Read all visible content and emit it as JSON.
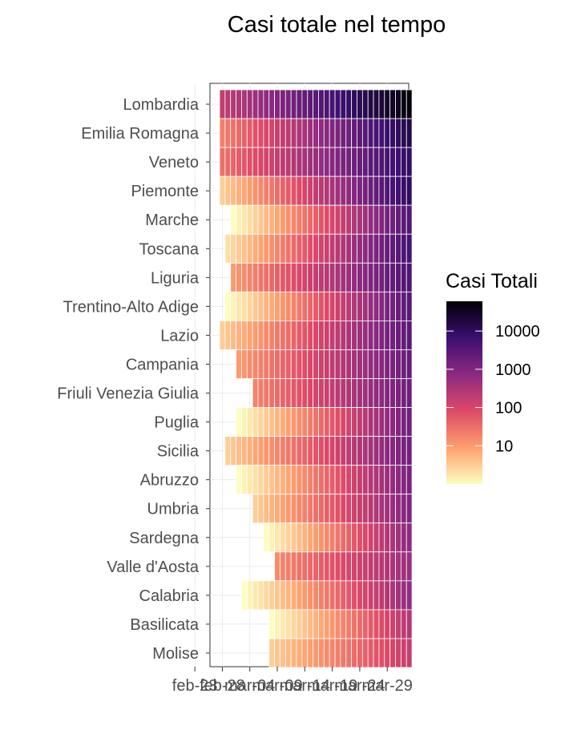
{
  "chart_data": {
    "type": "heatmap",
    "title": "Casi totale nel tempo",
    "xlabel": "",
    "ylabel": "",
    "x_tick_labels": [
      "feb-23",
      "feb-28",
      "mar-04",
      "mar-09",
      "mar-14",
      "mar-19",
      "mar-24",
      "mar-29"
    ],
    "dates": [
      "02-24",
      "02-25",
      "02-26",
      "02-27",
      "02-28",
      "02-29",
      "03-01",
      "03-02",
      "03-03",
      "03-04",
      "03-05",
      "03-06",
      "03-07",
      "03-08",
      "03-09",
      "03-10",
      "03-11",
      "03-12",
      "03-13",
      "03-14",
      "03-15",
      "03-16",
      "03-17",
      "03-18",
      "03-19",
      "03-20",
      "03-21",
      "03-22",
      "03-23",
      "03-24",
      "03-25",
      "03-26",
      "03-27",
      "03-28",
      "03-29"
    ],
    "color_scale": "log10",
    "palette": [
      "#fcfdbf",
      "#fe9f6d",
      "#de4968",
      "#8c2981",
      "#3b0f70",
      "#000004"
    ],
    "legend": {
      "title": "Casi Totali",
      "position": "right",
      "labels": [
        "10",
        "100",
        "1000",
        "10000"
      ],
      "values": [
        10,
        100,
        1000,
        10000
      ],
      "range": [
        1,
        60000
      ]
    },
    "grid": true,
    "regions": [
      {
        "name": "Lombardia",
        "start": 0,
        "v0": 170,
        "v1": 52000
      },
      {
        "name": "Emilia Romagna",
        "start": 0,
        "v0": 20,
        "v1": 15000
      },
      {
        "name": "Veneto",
        "start": 0,
        "v0": 30,
        "v1": 9000
      },
      {
        "name": "Piemonte",
        "start": 0,
        "v0": 3,
        "v1": 9500
      },
      {
        "name": "Marche",
        "start": 2,
        "v0": 1,
        "v1": 3500
      },
      {
        "name": "Toscana",
        "start": 1,
        "v0": 2,
        "v1": 5000
      },
      {
        "name": "Liguria",
        "start": 2,
        "v0": 10,
        "v1": 4000
      },
      {
        "name": "Trentino-Alto Adige",
        "start": 1,
        "v0": 1,
        "v1": 3000
      },
      {
        "name": "Lazio",
        "start": 0,
        "v0": 3,
        "v1": 2800
      },
      {
        "name": "Campania",
        "start": 3,
        "v0": 10,
        "v1": 2000
      },
      {
        "name": "Friuli Venezia Giulia",
        "start": 6,
        "v0": 18,
        "v1": 1700
      },
      {
        "name": "Puglia",
        "start": 3,
        "v0": 1,
        "v1": 1600
      },
      {
        "name": "Sicilia",
        "start": 1,
        "v0": 3,
        "v1": 1500
      },
      {
        "name": "Abruzzo",
        "start": 3,
        "v0": 1,
        "v1": 1200
      },
      {
        "name": "Umbria",
        "start": 6,
        "v0": 3,
        "v1": 1000
      },
      {
        "name": "Sardegna",
        "start": 8,
        "v0": 1,
        "v1": 700
      },
      {
        "name": "Valle d'Aosta",
        "start": 10,
        "v0": 15,
        "v1": 500
      },
      {
        "name": "Calabria",
        "start": 4,
        "v0": 1,
        "v1": 600
      },
      {
        "name": "Basilicata",
        "start": 9,
        "v0": 1,
        "v1": 250
      },
      {
        "name": "Molise",
        "start": 9,
        "v0": 3,
        "v1": 160
      }
    ]
  }
}
